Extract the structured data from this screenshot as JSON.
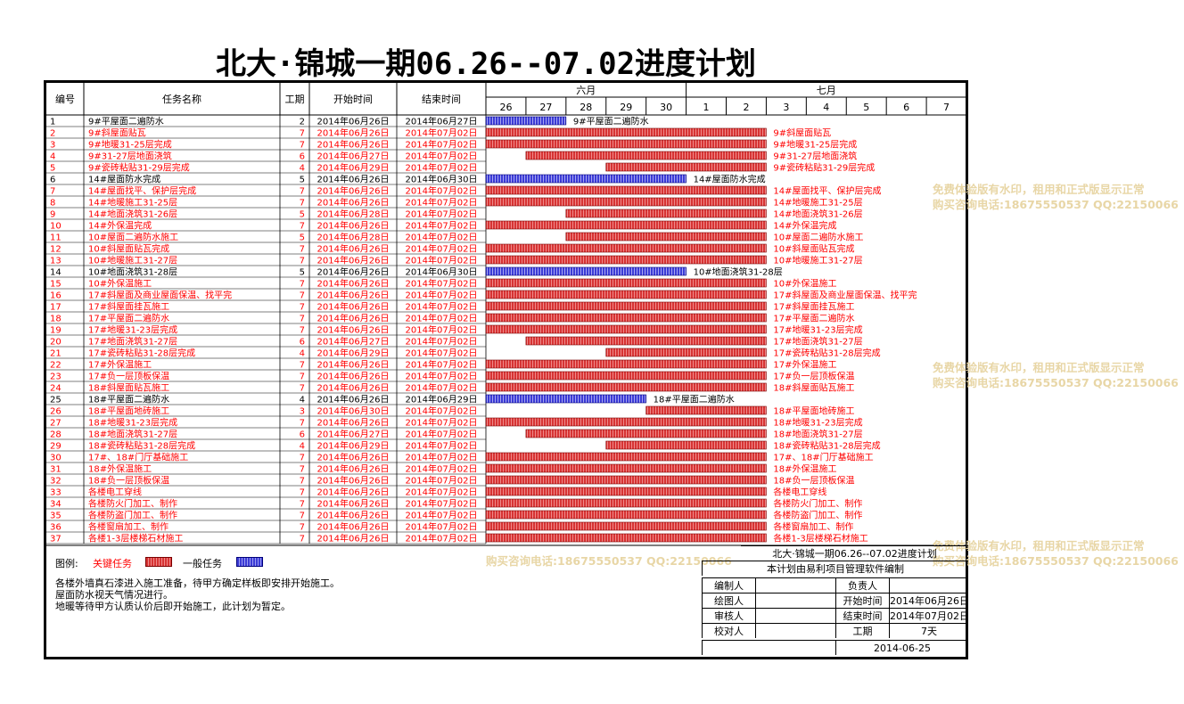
{
  "title": "北大·锦城一期06.26--07.02进度计划",
  "columns": {
    "no": "编号",
    "name": "任务名称",
    "dur": "工期",
    "start": "开始时间",
    "end": "结束时间"
  },
  "months": [
    {
      "label": "六月",
      "days": [
        "26",
        "27",
        "28",
        "29",
        "30"
      ]
    },
    {
      "label": "七月",
      "days": [
        "1",
        "2",
        "3",
        "4",
        "5",
        "6",
        "7"
      ]
    }
  ],
  "colors": {
    "key": "#d73434",
    "general": "#3c3cd6",
    "text_key": "#ff0000",
    "text_general": "#000000"
  },
  "chart_data": {
    "type": "gantt",
    "x_range": [
      "2014-06-26",
      "2014-07-08"
    ],
    "tasks": [
      {
        "no": "1",
        "name": "9#平屋面二遍防水",
        "dur": "2",
        "start": "2014年06月26日",
        "end": "2014年06月27日",
        "s": "2014-06-26",
        "e": "2014-06-27",
        "type": "general"
      },
      {
        "no": "2",
        "name": "9#斜屋面贴瓦",
        "dur": "7",
        "start": "2014年06月26日",
        "end": "2014年07月02日",
        "s": "2014-06-26",
        "e": "2014-07-02",
        "type": "key"
      },
      {
        "no": "3",
        "name": "9#地暖31-25层完成",
        "dur": "7",
        "start": "2014年06月26日",
        "end": "2014年07月02日",
        "s": "2014-06-26",
        "e": "2014-07-02",
        "type": "key"
      },
      {
        "no": "4",
        "name": "9#31-27层地面浇筑",
        "dur": "6",
        "start": "2014年06月27日",
        "end": "2014年07月02日",
        "s": "2014-06-27",
        "e": "2014-07-02",
        "type": "key"
      },
      {
        "no": "5",
        "name": "9#瓷砖粘贴31-29层完成",
        "dur": "4",
        "start": "2014年06月29日",
        "end": "2014年07月02日",
        "s": "2014-06-29",
        "e": "2014-07-02",
        "type": "key"
      },
      {
        "no": "6",
        "name": "14#屋面防水完成",
        "dur": "5",
        "start": "2014年06月26日",
        "end": "2014年06月30日",
        "s": "2014-06-26",
        "e": "2014-06-30",
        "type": "general"
      },
      {
        "no": "7",
        "name": "14#屋面找平、保护层完成",
        "dur": "7",
        "start": "2014年06月26日",
        "end": "2014年07月02日",
        "s": "2014-06-26",
        "e": "2014-07-02",
        "type": "key"
      },
      {
        "no": "8",
        "name": "14#地暖施工31-25层",
        "dur": "7",
        "start": "2014年06月26日",
        "end": "2014年07月02日",
        "s": "2014-06-26",
        "e": "2014-07-02",
        "type": "key"
      },
      {
        "no": "9",
        "name": "14#地面浇筑31-26层",
        "dur": "5",
        "start": "2014年06月28日",
        "end": "2014年07月02日",
        "s": "2014-06-28",
        "e": "2014-07-02",
        "type": "key"
      },
      {
        "no": "10",
        "name": "14#外保温完成",
        "dur": "7",
        "start": "2014年06月26日",
        "end": "2014年07月02日",
        "s": "2014-06-26",
        "e": "2014-07-02",
        "type": "key"
      },
      {
        "no": "11",
        "name": "10#屋面二遍防水施工",
        "dur": "5",
        "start": "2014年06月28日",
        "end": "2014年07月02日",
        "s": "2014-06-28",
        "e": "2014-07-02",
        "type": "key"
      },
      {
        "no": "12",
        "name": "10#斜屋面贴瓦完成",
        "dur": "7",
        "start": "2014年06月26日",
        "end": "2014年07月02日",
        "s": "2014-06-26",
        "e": "2014-07-02",
        "type": "key"
      },
      {
        "no": "13",
        "name": "10#地暖施工31-27层",
        "dur": "7",
        "start": "2014年06月26日",
        "end": "2014年07月02日",
        "s": "2014-06-26",
        "e": "2014-07-02",
        "type": "key"
      },
      {
        "no": "14",
        "name": "10#地面浇筑31-28层",
        "dur": "5",
        "start": "2014年06月26日",
        "end": "2014年06月30日",
        "s": "2014-06-26",
        "e": "2014-06-30",
        "type": "general"
      },
      {
        "no": "15",
        "name": "10#外保温施工",
        "dur": "7",
        "start": "2014年06月26日",
        "end": "2014年07月02日",
        "s": "2014-06-26",
        "e": "2014-07-02",
        "type": "key"
      },
      {
        "no": "16",
        "name": "17#斜屋面及商业屋面保温、找平完",
        "dur": "7",
        "start": "2014年06月26日",
        "end": "2014年07月02日",
        "s": "2014-06-26",
        "e": "2014-07-02",
        "type": "key"
      },
      {
        "no": "17",
        "name": "17#斜屋面挂瓦施工",
        "dur": "7",
        "start": "2014年06月26日",
        "end": "2014年07月02日",
        "s": "2014-06-26",
        "e": "2014-07-02",
        "type": "key"
      },
      {
        "no": "18",
        "name": "17#平屋面二遍防水",
        "dur": "7",
        "start": "2014年06月26日",
        "end": "2014年07月02日",
        "s": "2014-06-26",
        "e": "2014-07-02",
        "type": "key"
      },
      {
        "no": "19",
        "name": "17#地暖31-23层完成",
        "dur": "7",
        "start": "2014年06月26日",
        "end": "2014年07月02日",
        "s": "2014-06-26",
        "e": "2014-07-02",
        "type": "key"
      },
      {
        "no": "20",
        "name": "17#地面浇筑31-27层",
        "dur": "6",
        "start": "2014年06月27日",
        "end": "2014年07月02日",
        "s": "2014-06-27",
        "e": "2014-07-02",
        "type": "key"
      },
      {
        "no": "21",
        "name": "17#瓷砖粘贴31-28层完成",
        "dur": "4",
        "start": "2014年06月29日",
        "end": "2014年07月02日",
        "s": "2014-06-29",
        "e": "2014-07-02",
        "type": "key"
      },
      {
        "no": "22",
        "name": "17#外保温施工",
        "dur": "7",
        "start": "2014年06月26日",
        "end": "2014年07月02日",
        "s": "2014-06-26",
        "e": "2014-07-02",
        "type": "key"
      },
      {
        "no": "23",
        "name": "17#负一层顶板保温",
        "dur": "7",
        "start": "2014年06月26日",
        "end": "2014年07月02日",
        "s": "2014-06-26",
        "e": "2014-07-02",
        "type": "key"
      },
      {
        "no": "24",
        "name": "18#斜屋面贴瓦施工",
        "dur": "7",
        "start": "2014年06月26日",
        "end": "2014年07月02日",
        "s": "2014-06-26",
        "e": "2014-07-02",
        "type": "key"
      },
      {
        "no": "25",
        "name": "18#平屋面二遍防水",
        "dur": "4",
        "start": "2014年06月26日",
        "end": "2014年06月29日",
        "s": "2014-06-26",
        "e": "2014-06-29",
        "type": "general"
      },
      {
        "no": "26",
        "name": "18#平屋面地砖施工",
        "dur": "3",
        "start": "2014年06月30日",
        "end": "2014年07月02日",
        "s": "2014-06-30",
        "e": "2014-07-02",
        "type": "key"
      },
      {
        "no": "27",
        "name": "18#地暖31-23层完成",
        "dur": "7",
        "start": "2014年06月26日",
        "end": "2014年07月02日",
        "s": "2014-06-26",
        "e": "2014-07-02",
        "type": "key"
      },
      {
        "no": "28",
        "name": "18#地面浇筑31-27层",
        "dur": "6",
        "start": "2014年06月27日",
        "end": "2014年07月02日",
        "s": "2014-06-27",
        "e": "2014-07-02",
        "type": "key"
      },
      {
        "no": "29",
        "name": "18#瓷砖粘贴31-28层完成",
        "dur": "4",
        "start": "2014年06月29日",
        "end": "2014年07月02日",
        "s": "2014-06-29",
        "e": "2014-07-02",
        "type": "key"
      },
      {
        "no": "30",
        "name": "17#、18#门厅基础施工",
        "dur": "7",
        "start": "2014年06月26日",
        "end": "2014年07月02日",
        "s": "2014-06-26",
        "e": "2014-07-02",
        "type": "key"
      },
      {
        "no": "31",
        "name": "18#外保温施工",
        "dur": "7",
        "start": "2014年06月26日",
        "end": "2014年07月02日",
        "s": "2014-06-26",
        "e": "2014-07-02",
        "type": "key"
      },
      {
        "no": "32",
        "name": "18#负一层顶板保温",
        "dur": "7",
        "start": "2014年06月26日",
        "end": "2014年07月02日",
        "s": "2014-06-26",
        "e": "2014-07-02",
        "type": "key"
      },
      {
        "no": "33",
        "name": "各楼电工穿线",
        "dur": "7",
        "start": "2014年06月26日",
        "end": "2014年07月02日",
        "s": "2014-06-26",
        "e": "2014-07-02",
        "type": "key"
      },
      {
        "no": "34",
        "name": "各楼防火门加工、制作",
        "dur": "7",
        "start": "2014年06月26日",
        "end": "2014年07月02日",
        "s": "2014-06-26",
        "e": "2014-07-02",
        "type": "key"
      },
      {
        "no": "35",
        "name": "各楼防盗门加工、制作",
        "dur": "7",
        "start": "2014年06月26日",
        "end": "2014年07月02日",
        "s": "2014-06-26",
        "e": "2014-07-02",
        "type": "key"
      },
      {
        "no": "36",
        "name": "各楼窗扇加工、制作",
        "dur": "7",
        "start": "2014年06月26日",
        "end": "2014年07月02日",
        "s": "2014-06-26",
        "e": "2014-07-02",
        "type": "key"
      },
      {
        "no": "37",
        "name": "各楼1-3层楼梯石材施工",
        "dur": "7",
        "start": "2014年06月26日",
        "end": "2014年07月02日",
        "s": "2014-06-26",
        "e": "2014-07-02",
        "type": "key"
      }
    ]
  },
  "legend": {
    "label": "图例:",
    "key": "关键任务",
    "general": "一般任务"
  },
  "notes": [
    "各楼外墙真石漆进入施工准备，待甲方确定样板即安排开始施工。",
    "屋面防水视天气情况进行。",
    "地暖等待甲方认质认价后即开始施工，此计划为暂定。"
  ],
  "info": {
    "title": "北大·锦城一期06.26--07.02进度计划",
    "subtitle": "本计划由易利项目管理软件编制",
    "editor": "编制人",
    "owner": "负责人",
    "drawer": "绘图人",
    "start_label": "开始时间",
    "start_val": "2014年06月26日",
    "reviewer": "审核人",
    "end_label": "结束时间",
    "end_val": "2014年07月02日",
    "checker": "校对人",
    "dur_label": "工期",
    "dur_val": "7天",
    "date": "2014-06-25"
  },
  "watermark": {
    "line1": "免费体验版有水印，租用和正式版显示正常",
    "line2": "购买咨询电话:18675550537 QQ:22150066"
  }
}
